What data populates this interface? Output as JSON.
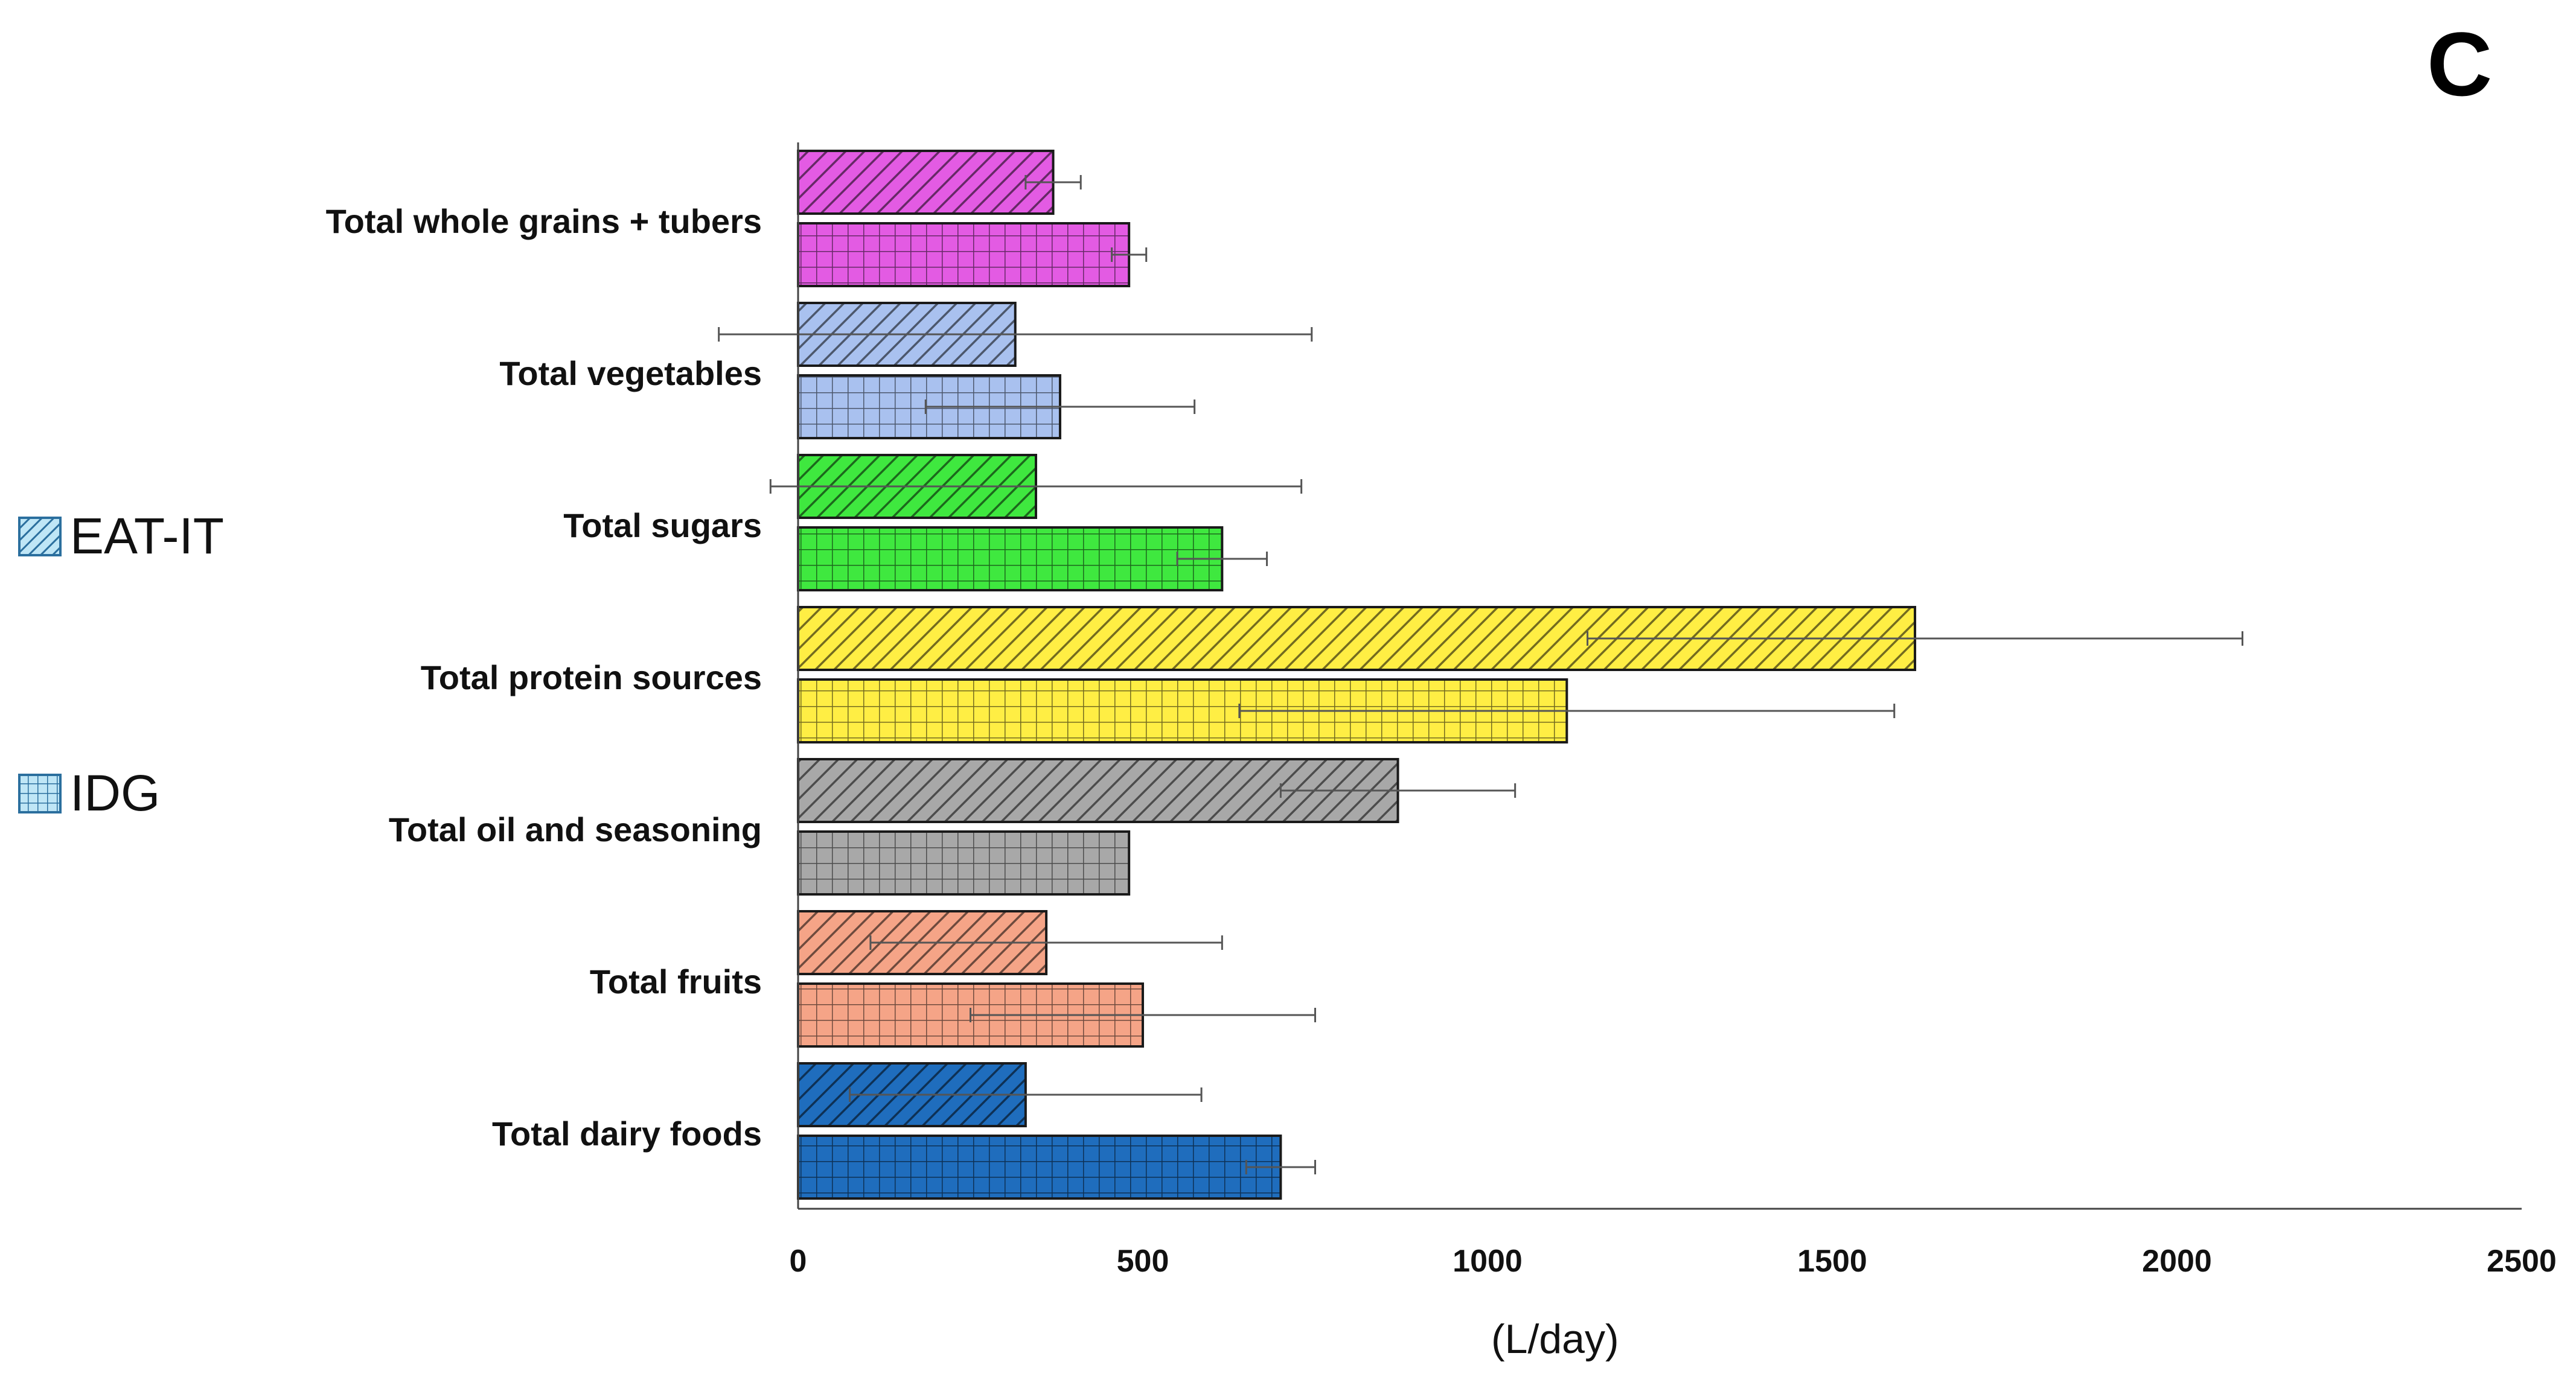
{
  "panel_letter": "C",
  "legend": {
    "eat_it_label": "EAT-IT",
    "idg_label": "IDG"
  },
  "chart_data": {
    "type": "bar",
    "orientation": "horizontal",
    "categories": [
      "Total whole grains + tubers",
      "Total vegetables",
      "Total sugars",
      "Total protein sources",
      "Total oil and seasoning",
      "Total fruits",
      "Total dairy foods"
    ],
    "category_colors": [
      "#e35be3",
      "#a9c1ef",
      "#3fe83f",
      "#ffee44",
      "#a8a8a8",
      "#f5a487",
      "#1f6dbd"
    ],
    "series": [
      {
        "name": "EAT-IT",
        "pattern": "diagonal-hatch",
        "values": [
          370,
          315,
          345,
          1620,
          870,
          360,
          330
        ],
        "error": [
          40,
          430,
          385,
          475,
          170,
          255,
          255
        ]
      },
      {
        "name": "IDG",
        "pattern": "grid",
        "values": [
          480,
          380,
          615,
          1115,
          480,
          500,
          700
        ],
        "error": [
          25,
          195,
          65,
          475,
          0,
          250,
          50
        ]
      }
    ],
    "xlabel": "(L/day)",
    "xlim": [
      0,
      2500
    ],
    "xticks": [
      "0",
      "500",
      "1000",
      "1500",
      "2000",
      "2500"
    ],
    "grid": false,
    "legend_position": "left"
  }
}
